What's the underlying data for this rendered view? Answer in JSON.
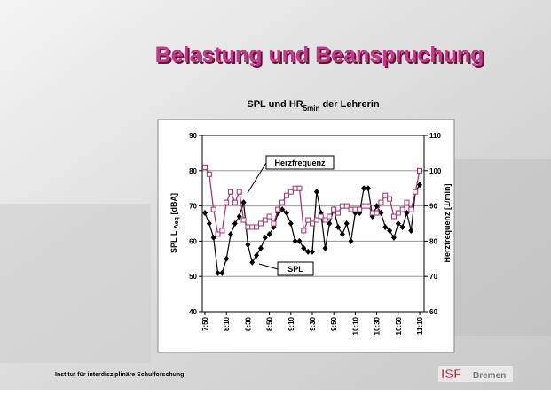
{
  "slide": {
    "heading": "Belastung und Beanspruchung",
    "footer": "Institut für interdisziplinäre Schulforschung",
    "logo_mark": "ISF",
    "logo_text": "Bremen"
  },
  "chart_data": {
    "type": "line",
    "title": "SPL und HR",
    "title_subscript": "5min",
    "title_suffix": "der Lehrerin",
    "ylabel": "SPL L",
    "ylabel_subscript": "Aeq",
    "ylabel_suffix": "[dBA]",
    "y2label": "Herzfrequenz [1/min]",
    "categories": [
      "7:50",
      null,
      null,
      null,
      null,
      "8:10",
      null,
      null,
      null,
      null,
      "8:30",
      null,
      null,
      null,
      null,
      "8:50",
      null,
      null,
      null,
      null,
      "9:10",
      null,
      null,
      null,
      null,
      "9:30",
      null,
      null,
      null,
      null,
      "9:50",
      null,
      null,
      null,
      null,
      "10:10",
      null,
      null,
      null,
      null,
      "10:30",
      null,
      null,
      null,
      null,
      "10:50",
      null,
      null,
      null,
      null,
      "11:10"
    ],
    "ylim": [
      40,
      90
    ],
    "yticks": [
      40,
      50,
      60,
      70,
      80,
      90
    ],
    "y2lim": [
      60,
      110
    ],
    "y2ticks": [
      60,
      70,
      80,
      90,
      100,
      110
    ],
    "grid": true,
    "series": [
      {
        "name": "SPL",
        "color": "#000000",
        "marker": "diamond",
        "values": [
          68,
          65,
          61,
          51,
          51,
          55,
          62,
          65,
          67,
          71,
          59,
          54,
          56,
          58,
          61,
          62,
          64,
          68,
          69,
          68,
          65,
          60,
          60,
          58,
          57,
          57,
          74,
          68,
          58,
          65,
          69,
          64,
          62,
          65,
          60,
          68,
          68,
          75,
          75,
          67,
          70,
          68,
          64,
          63,
          61,
          65,
          64,
          68,
          63,
          74,
          76
        ]
      },
      {
        "name": "Herzfrequenz",
        "color": "#a0306a",
        "marker": "square",
        "axis": "y2",
        "values": [
          101,
          99,
          89,
          82,
          83,
          91,
          94,
          91,
          94,
          86,
          84,
          84,
          84,
          85,
          86,
          87,
          85,
          89,
          91,
          93,
          94,
          95,
          95,
          83,
          86,
          85,
          86,
          87,
          86,
          87,
          89,
          88,
          90,
          90,
          89,
          89,
          89,
          90,
          90,
          88,
          88,
          91,
          93,
          92,
          87,
          88,
          89,
          91,
          89,
          94,
          100
        ]
      }
    ]
  }
}
